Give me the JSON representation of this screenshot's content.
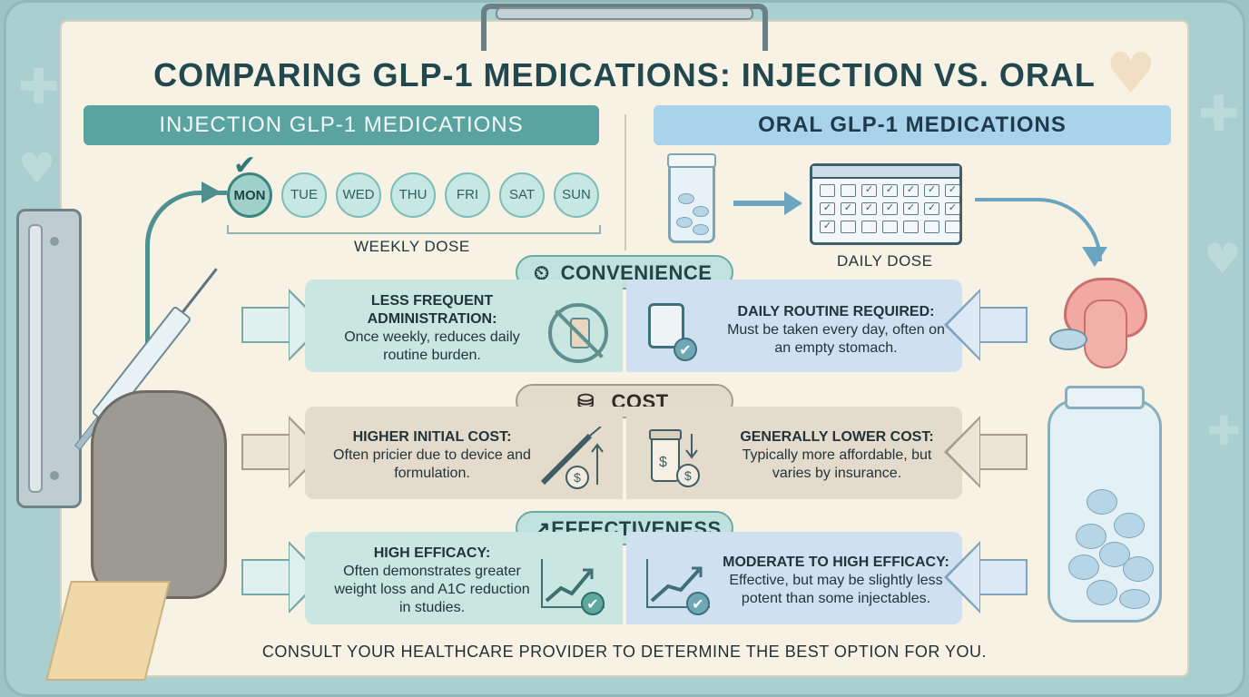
{
  "title": "COMPARING GLP-1 MEDICATIONS: INJECTION VS. ORAL",
  "injection": {
    "header": "INJECTION GLP-1 MEDICATIONS",
    "days": [
      "MON",
      "TUE",
      "WED",
      "THU",
      "FRI",
      "SAT",
      "SUN"
    ],
    "dose_label": "WEEKLY DOSE"
  },
  "oral": {
    "header": "ORAL GLP-1 MEDICATIONS",
    "dose_label": "DAILY DOSE"
  },
  "sections": {
    "convenience": {
      "tag": "CONVENIENCE",
      "left_title": "LESS FREQUENT ADMINISTRATION:",
      "left_body": "Once weekly, reduces daily routine burden.",
      "right_title": "DAILY ROUTINE REQUIRED:",
      "right_body": "Must be taken every day, often on an empty stomach."
    },
    "cost": {
      "tag": "COST",
      "left_title": "HIGHER INITIAL COST:",
      "left_body": "Often pricier due to device and formulation.",
      "right_title": "GENERALLY LOWER COST:",
      "right_body": "Typically more affordable, but varies by insurance."
    },
    "effectiveness": {
      "tag": "EFFECTIVENESS",
      "left_title": "HIGH EFFICACY:",
      "left_body": "Often demonstrates greater weight loss and A1C reduction in studies.",
      "right_title": "MODERATE TO HIGH EFFICACY:",
      "right_body": "Effective, but may be slightly less potent than some injectables."
    }
  },
  "footer": "CONSULT YOUR HEALTHCARE PROVIDER TO DETERMINE THE BEST OPTION FOR YOU.",
  "icons": {
    "convenience": "clock-icon",
    "cost": "coins-icon",
    "effectiveness": "trend-up-icon",
    "check": "checkmark-icon"
  },
  "colors": {
    "injection_accent": "#5ba3a0",
    "oral_accent": "#a8d3ea",
    "cost_accent": "#e2dacb",
    "paper": "#f8f2e4"
  }
}
